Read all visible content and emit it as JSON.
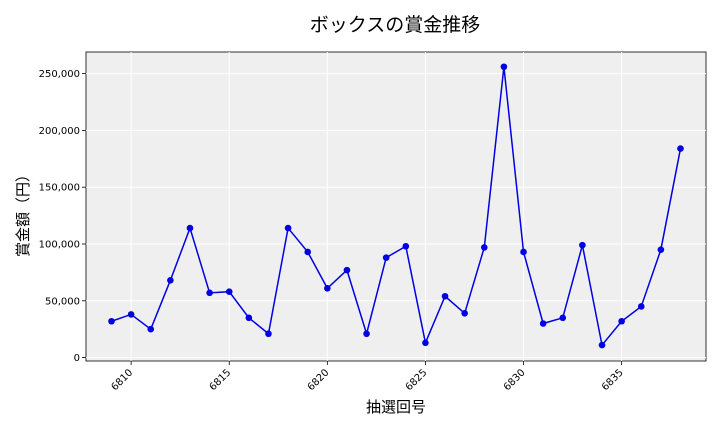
{
  "chart_data": {
    "type": "line",
    "title": "ボックスの賞金推移",
    "xlabel": "抽選回号",
    "ylabel": "賞金額（円）",
    "x": [
      6809,
      6810,
      6811,
      6812,
      6813,
      6814,
      6815,
      6816,
      6817,
      6818,
      6819,
      6820,
      6821,
      6822,
      6823,
      6824,
      6825,
      6826,
      6827,
      6828,
      6829,
      6830,
      6831,
      6832,
      6833,
      6834,
      6835,
      6836,
      6837,
      6838
    ],
    "series": [
      {
        "values": [
          32000,
          38000,
          25000,
          68000,
          114000,
          57000,
          58000,
          35000,
          21000,
          114000,
          93000,
          61000,
          77000,
          21000,
          88000,
          98000,
          13000,
          54000,
          39000,
          97000,
          256000,
          93000,
          30000,
          35000,
          99000,
          11000,
          32000,
          45000,
          95000,
          184000
        ],
        "color": "#0000e0"
      }
    ],
    "xlim": [
      6807.7,
      6839.3
    ],
    "ylim": [
      -3000,
      269000
    ],
    "xticks": [
      6810,
      6815,
      6820,
      6825,
      6830,
      6835
    ],
    "yticks": [
      0,
      50000,
      100000,
      150000,
      200000,
      250000
    ],
    "ytick_labels": [
      "0",
      "50,000",
      "100,000",
      "150,000",
      "200,000",
      "250,000"
    ],
    "grid": true,
    "background": "#efefef"
  }
}
